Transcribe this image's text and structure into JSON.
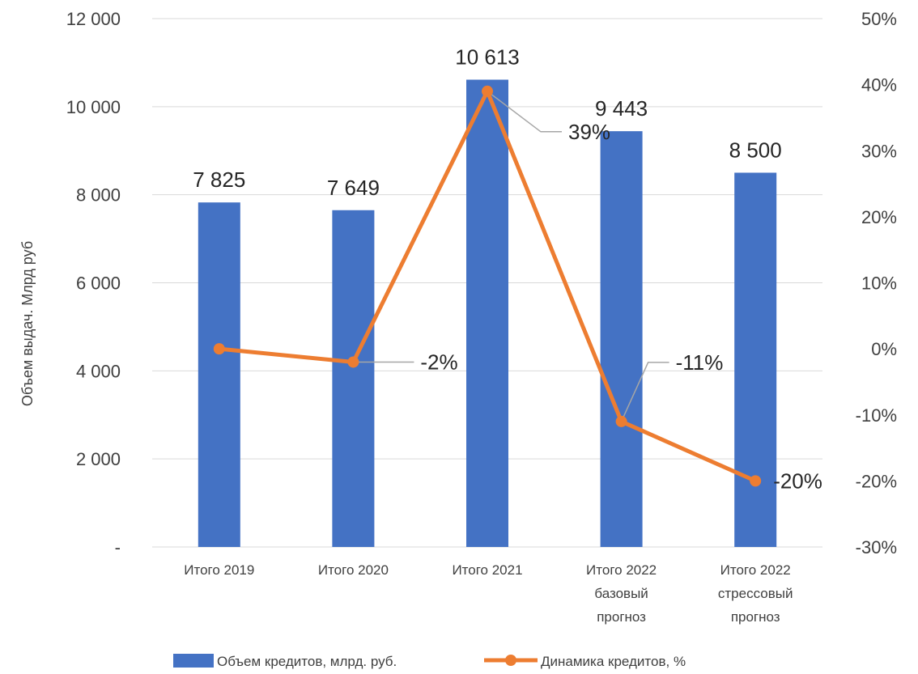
{
  "chart_data": {
    "type": "bar",
    "categories": [
      [
        "Итого 2019"
      ],
      [
        "Итого 2020"
      ],
      [
        "Итого 2021"
      ],
      [
        "Итого 2022",
        "базовый",
        "прогноз"
      ],
      [
        "Итого 2022",
        "стрессовый",
        "прогноз"
      ]
    ],
    "series": [
      {
        "name": "Объем кредитов, млрд. руб.",
        "type": "bar",
        "axis": "left",
        "color": "#4472c4",
        "values": [
          7825,
          7649,
          10613,
          9443,
          8500
        ],
        "labels": [
          "7 825",
          "7 649",
          "10 613",
          "9 443",
          "8 500"
        ]
      },
      {
        "name": "Динамика кредитов, %",
        "type": "line",
        "axis": "right",
        "color": "#ed7d31",
        "values": [
          0,
          -2,
          39,
          -11,
          -20
        ],
        "labels": [
          "",
          "-2%",
          "39%",
          "-11%",
          "-20%"
        ]
      }
    ],
    "ylabel": "Объем выдач. Млрд  руб",
    "ylim": [
      0,
      12000
    ],
    "y2lim": [
      -30,
      50
    ],
    "yticks": [
      {
        "value": 0,
        "label": "-"
      },
      {
        "value": 2000,
        "label": "2 000"
      },
      {
        "value": 4000,
        "label": "4 000"
      },
      {
        "value": 6000,
        "label": "6 000"
      },
      {
        "value": 8000,
        "label": "8 000"
      },
      {
        "value": 10000,
        "label": "10 000"
      },
      {
        "value": 12000,
        "label": "12 000"
      }
    ],
    "y2ticks": [
      {
        "value": -30,
        "label": "-30%"
      },
      {
        "value": -20,
        "label": "-20%"
      },
      {
        "value": -10,
        "label": "-10%"
      },
      {
        "value": 0,
        "label": "0%"
      },
      {
        "value": 10,
        "label": "10%"
      },
      {
        "value": 20,
        "label": "20%"
      },
      {
        "value": 30,
        "label": "30%"
      },
      {
        "value": 40,
        "label": "40%"
      },
      {
        "value": 50,
        "label": "50%"
      }
    ],
    "grid": true,
    "legend": "bottom"
  }
}
